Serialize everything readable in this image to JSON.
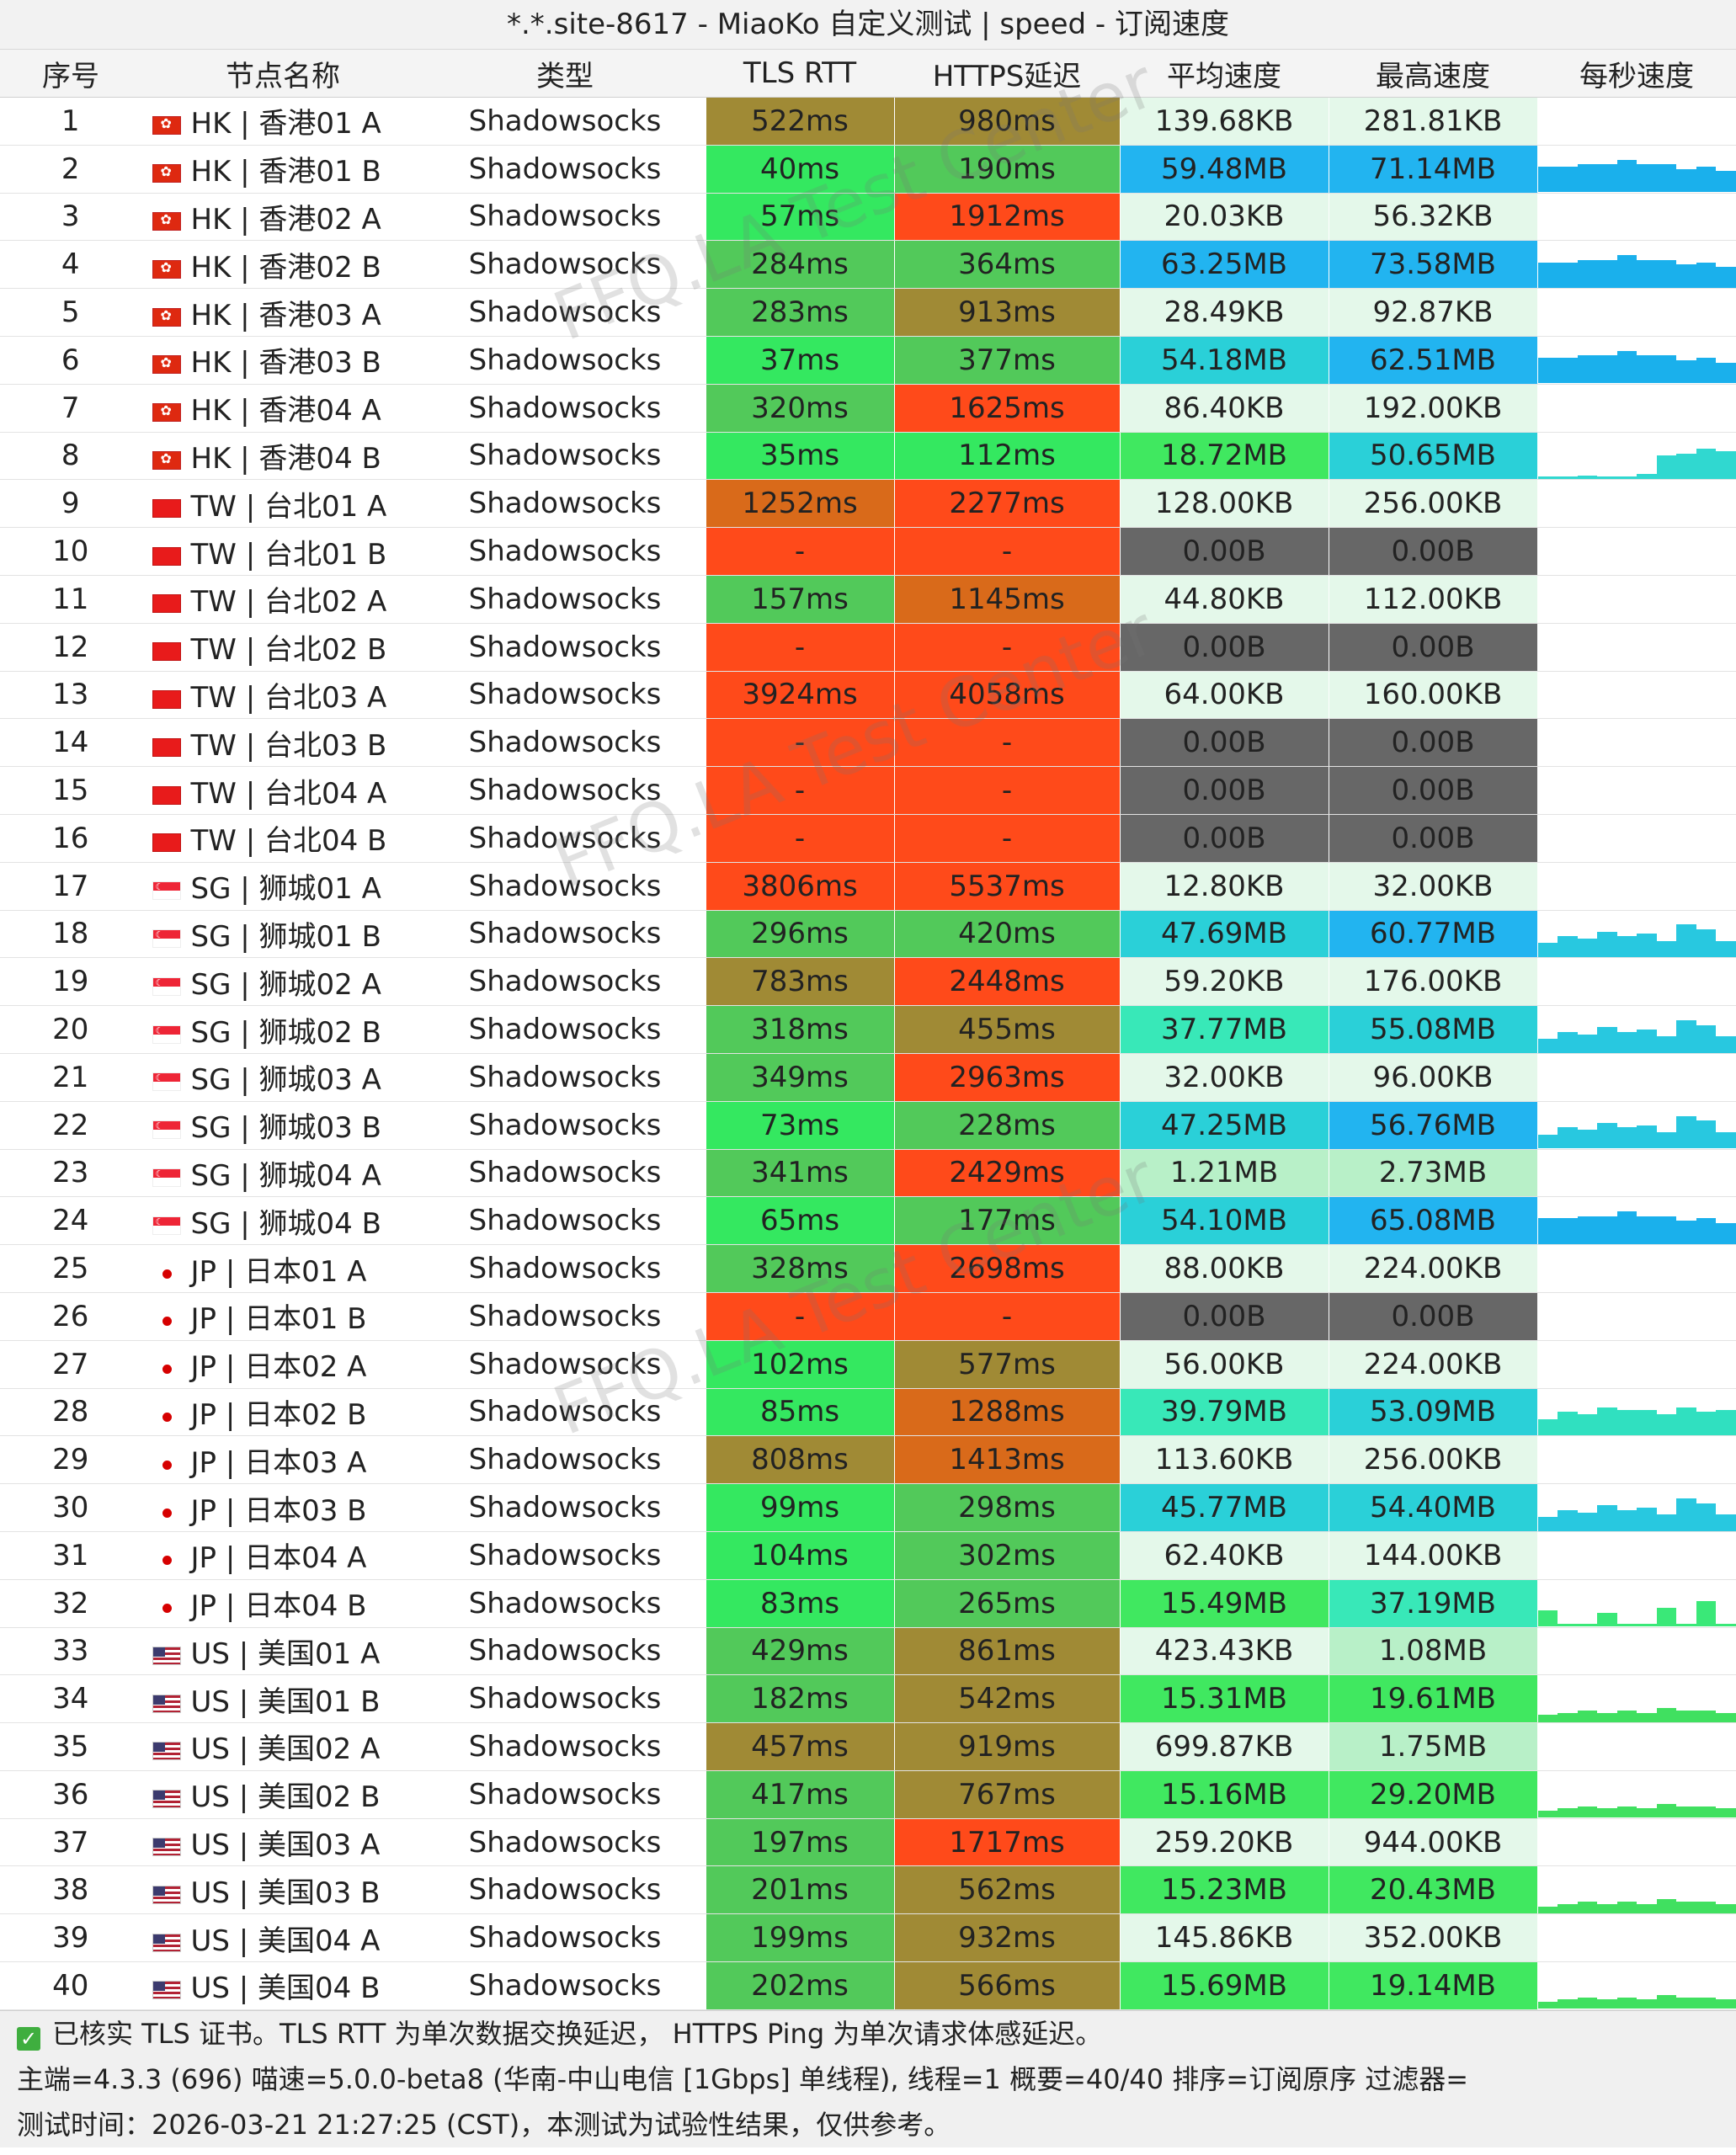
{
  "window": {
    "title": "*.*.site-8617 - MiaoKo 自定义测试 | speed - 订阅速度"
  },
  "columns": [
    "序号",
    "节点名称",
    "类型",
    "TLS RTT",
    "HTTPS延迟",
    "平均速度",
    "最高速度",
    "每秒速度"
  ],
  "watermark_text": "FFQ.LA Test Center",
  "rows": [
    {
      "n": "1",
      "flag": "hk",
      "node": "HK | 香港01 A",
      "type": "Shadowsocks",
      "tls": "522ms",
      "https": "980ms",
      "avg": "139.68KB",
      "max": "281.81KB",
      "spark": "none"
    },
    {
      "n": "2",
      "flag": "hk",
      "node": "HK | 香港01 B",
      "type": "Shadowsocks",
      "tls": "40ms",
      "https": "190ms",
      "avg": "59.48MB",
      "max": "71.14MB",
      "spark": "blue"
    },
    {
      "n": "3",
      "flag": "hk",
      "node": "HK | 香港02 A",
      "type": "Shadowsocks",
      "tls": "57ms",
      "https": "1912ms",
      "avg": "20.03KB",
      "max": "56.32KB",
      "spark": "none"
    },
    {
      "n": "4",
      "flag": "hk",
      "node": "HK | 香港02 B",
      "type": "Shadowsocks",
      "tls": "284ms",
      "https": "364ms",
      "avg": "63.25MB",
      "max": "73.58MB",
      "spark": "blue"
    },
    {
      "n": "5",
      "flag": "hk",
      "node": "HK | 香港03 A",
      "type": "Shadowsocks",
      "tls": "283ms",
      "https": "913ms",
      "avg": "28.49KB",
      "max": "92.87KB",
      "spark": "none"
    },
    {
      "n": "6",
      "flag": "hk",
      "node": "HK | 香港03 B",
      "type": "Shadowsocks",
      "tls": "37ms",
      "https": "377ms",
      "avg": "54.18MB",
      "max": "62.51MB",
      "spark": "blue"
    },
    {
      "n": "7",
      "flag": "hk",
      "node": "HK | 香港04 A",
      "type": "Shadowsocks",
      "tls": "320ms",
      "https": "1625ms",
      "avg": "86.40KB",
      "max": "192.00KB",
      "spark": "none"
    },
    {
      "n": "8",
      "flag": "hk",
      "node": "HK | 香港04 B",
      "type": "Shadowsocks",
      "tls": "35ms",
      "https": "112ms",
      "avg": "18.72MB",
      "max": "50.65MB",
      "spark": "late"
    },
    {
      "n": "9",
      "flag": "tw",
      "node": "TW | 台北01 A",
      "type": "Shadowsocks",
      "tls": "1252ms",
      "https": "2277ms",
      "avg": "128.00KB",
      "max": "256.00KB",
      "spark": "none"
    },
    {
      "n": "10",
      "flag": "tw",
      "node": "TW | 台北01 B",
      "type": "Shadowsocks",
      "tls": "-",
      "https": "-",
      "avg": "0.00B",
      "max": "0.00B",
      "spark": "none"
    },
    {
      "n": "11",
      "flag": "tw",
      "node": "TW | 台北02 A",
      "type": "Shadowsocks",
      "tls": "157ms",
      "https": "1145ms",
      "avg": "44.80KB",
      "max": "112.00KB",
      "spark": "none"
    },
    {
      "n": "12",
      "flag": "tw",
      "node": "TW | 台北02 B",
      "type": "Shadowsocks",
      "tls": "-",
      "https": "-",
      "avg": "0.00B",
      "max": "0.00B",
      "spark": "none"
    },
    {
      "n": "13",
      "flag": "tw",
      "node": "TW | 台北03 A",
      "type": "Shadowsocks",
      "tls": "3924ms",
      "https": "4058ms",
      "avg": "64.00KB",
      "max": "160.00KB",
      "spark": "none"
    },
    {
      "n": "14",
      "flag": "tw",
      "node": "TW | 台北03 B",
      "type": "Shadowsocks",
      "tls": "-",
      "https": "-",
      "avg": "0.00B",
      "max": "0.00B",
      "spark": "none"
    },
    {
      "n": "15",
      "flag": "tw",
      "node": "TW | 台北04 A",
      "type": "Shadowsocks",
      "tls": "-",
      "https": "-",
      "avg": "0.00B",
      "max": "0.00B",
      "spark": "none"
    },
    {
      "n": "16",
      "flag": "tw",
      "node": "TW | 台北04 B",
      "type": "Shadowsocks",
      "tls": "-",
      "https": "-",
      "avg": "0.00B",
      "max": "0.00B",
      "spark": "none"
    },
    {
      "n": "17",
      "flag": "sg",
      "node": "SG | 狮城01 A",
      "type": "Shadowsocks",
      "tls": "3806ms",
      "https": "5537ms",
      "avg": "12.80KB",
      "max": "32.00KB",
      "spark": "none"
    },
    {
      "n": "18",
      "flag": "sg",
      "node": "SG | 狮城01 B",
      "type": "Shadowsocks",
      "tls": "296ms",
      "https": "420ms",
      "avg": "47.69MB",
      "max": "60.77MB",
      "spark": "mixed"
    },
    {
      "n": "19",
      "flag": "sg",
      "node": "SG | 狮城02 A",
      "type": "Shadowsocks",
      "tls": "783ms",
      "https": "2448ms",
      "avg": "59.20KB",
      "max": "176.00KB",
      "spark": "none"
    },
    {
      "n": "20",
      "flag": "sg",
      "node": "SG | 狮城02 B",
      "type": "Shadowsocks",
      "tls": "318ms",
      "https": "455ms",
      "avg": "37.77MB",
      "max": "55.08MB",
      "spark": "mixed"
    },
    {
      "n": "21",
      "flag": "sg",
      "node": "SG | 狮城03 A",
      "type": "Shadowsocks",
      "tls": "349ms",
      "https": "2963ms",
      "avg": "32.00KB",
      "max": "96.00KB",
      "spark": "none"
    },
    {
      "n": "22",
      "flag": "sg",
      "node": "SG | 狮城03 B",
      "type": "Shadowsocks",
      "tls": "73ms",
      "https": "228ms",
      "avg": "47.25MB",
      "max": "56.76MB",
      "spark": "mixed"
    },
    {
      "n": "23",
      "flag": "sg",
      "node": "SG | 狮城04 A",
      "type": "Shadowsocks",
      "tls": "341ms",
      "https": "2429ms",
      "avg": "1.21MB",
      "max": "2.73MB",
      "spark": "none"
    },
    {
      "n": "24",
      "flag": "sg",
      "node": "SG | 狮城04 B",
      "type": "Shadowsocks",
      "tls": "65ms",
      "https": "177ms",
      "avg": "54.10MB",
      "max": "65.08MB",
      "spark": "blue"
    },
    {
      "n": "25",
      "flag": "jp",
      "node": "JP | 日本01 A",
      "type": "Shadowsocks",
      "tls": "328ms",
      "https": "2698ms",
      "avg": "88.00KB",
      "max": "224.00KB",
      "spark": "none"
    },
    {
      "n": "26",
      "flag": "jp",
      "node": "JP | 日本01 B",
      "type": "Shadowsocks",
      "tls": "-",
      "https": "-",
      "avg": "0.00B",
      "max": "0.00B",
      "spark": "none"
    },
    {
      "n": "27",
      "flag": "jp",
      "node": "JP | 日本02 A",
      "type": "Shadowsocks",
      "tls": "102ms",
      "https": "577ms",
      "avg": "56.00KB",
      "max": "224.00KB",
      "spark": "none"
    },
    {
      "n": "28",
      "flag": "jp",
      "node": "JP | 日本02 B",
      "type": "Shadowsocks",
      "tls": "85ms",
      "https": "1288ms",
      "avg": "39.79MB",
      "max": "53.09MB",
      "spark": "teal"
    },
    {
      "n": "29",
      "flag": "jp",
      "node": "JP | 日本03 A",
      "type": "Shadowsocks",
      "tls": "808ms",
      "https": "1413ms",
      "avg": "113.60KB",
      "max": "256.00KB",
      "spark": "none"
    },
    {
      "n": "30",
      "flag": "jp",
      "node": "JP | 日本03 B",
      "type": "Shadowsocks",
      "tls": "99ms",
      "https": "298ms",
      "avg": "45.77MB",
      "max": "54.40MB",
      "spark": "mixed"
    },
    {
      "n": "31",
      "flag": "jp",
      "node": "JP | 日本04 A",
      "type": "Shadowsocks",
      "tls": "104ms",
      "https": "302ms",
      "avg": "62.40KB",
      "max": "144.00KB",
      "spark": "none"
    },
    {
      "n": "32",
      "flag": "jp",
      "node": "JP | 日本04 B",
      "type": "Shadowsocks",
      "tls": "83ms",
      "https": "265ms",
      "avg": "15.49MB",
      "max": "37.19MB",
      "spark": "sparse"
    },
    {
      "n": "33",
      "flag": "us",
      "node": "US | 美国01 A",
      "type": "Shadowsocks",
      "tls": "429ms",
      "https": "861ms",
      "avg": "423.43KB",
      "max": "1.08MB",
      "spark": "none"
    },
    {
      "n": "34",
      "flag": "us",
      "node": "US | 美国01 B",
      "type": "Shadowsocks",
      "tls": "182ms",
      "https": "542ms",
      "avg": "15.31MB",
      "max": "19.61MB",
      "spark": "low"
    },
    {
      "n": "35",
      "flag": "us",
      "node": "US | 美国02 A",
      "type": "Shadowsocks",
      "tls": "457ms",
      "https": "919ms",
      "avg": "699.87KB",
      "max": "1.75MB",
      "spark": "none"
    },
    {
      "n": "36",
      "flag": "us",
      "node": "US | 美国02 B",
      "type": "Shadowsocks",
      "tls": "417ms",
      "https": "767ms",
      "avg": "15.16MB",
      "max": "29.20MB",
      "spark": "low"
    },
    {
      "n": "37",
      "flag": "us",
      "node": "US | 美国03 A",
      "type": "Shadowsocks",
      "tls": "197ms",
      "https": "1717ms",
      "avg": "259.20KB",
      "max": "944.00KB",
      "spark": "none"
    },
    {
      "n": "38",
      "flag": "us",
      "node": "US | 美国03 B",
      "type": "Shadowsocks",
      "tls": "201ms",
      "https": "562ms",
      "avg": "15.23MB",
      "max": "20.43MB",
      "spark": "low"
    },
    {
      "n": "39",
      "flag": "us",
      "node": "US | 美国04 A",
      "type": "Shadowsocks",
      "tls": "199ms",
      "https": "932ms",
      "avg": "145.86KB",
      "max": "352.00KB",
      "spark": "none"
    },
    {
      "n": "40",
      "flag": "us",
      "node": "US | 美国04 B",
      "type": "Shadowsocks",
      "tls": "202ms",
      "https": "566ms",
      "avg": "15.69MB",
      "max": "19.14MB",
      "spark": "low"
    }
  ],
  "footer": {
    "line1": "已核实 TLS 证书。TLS RTT 为单次数据交换延迟， HTTPS Ping 为单次请求体感延迟。",
    "line2": "主端=4.3.3 (696) 喵速=5.0.0-beta8 (华南-中山电信 [1Gbps] 单线程), 线程=1 概要=40/40 排序=订阅原序 过滤器=",
    "line3": "测试时间：2026-03-21 21:27:25 (CST)，本测试为试验性结果，仅供参考。"
  },
  "colors": {
    "fail": "#ff4a1a",
    "zero_speed": "#666666",
    "title_bg": "#f2f2f2",
    "footer_bg": "#f0f0f0"
  }
}
